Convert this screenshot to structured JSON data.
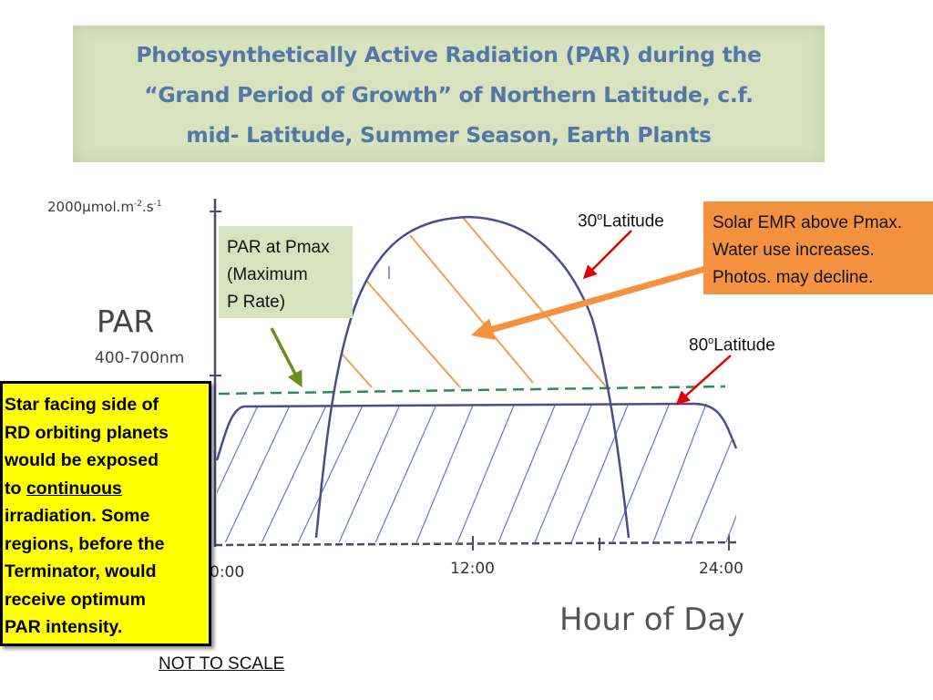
{
  "title": {
    "line1": "Photosynthetically Active Radiation (PAR) during the",
    "line2": "“Grand Period of Growth” of Northern Latitude, c.f.",
    "line3": "mid- Latitude, Summer Season, Earth Plants"
  },
  "axes": {
    "y_unit_prefix": "2000µmol.m",
    "y_unit_exp1": "-2",
    "y_unit_mid": ".s",
    "y_unit_exp2": "-1",
    "y_label": "PAR",
    "y_sublabel": "400-700nm",
    "x_ticks": [
      "0:00",
      "12:00",
      "24:00"
    ],
    "x_label": "Hour of Day"
  },
  "callouts": {
    "pmax_line1": "PAR at Pmax",
    "pmax_line2": "(Maximum",
    "pmax_line3": "P Rate)",
    "emr_line1": "Solar EMR above Pmax.",
    "emr_line2": "Water use increases.",
    "emr_line3": "Photos. may decline.",
    "lat30_num": "30",
    "lat30_sup": "o",
    "lat30_word": "Latitude",
    "lat80_num": "80",
    "lat80_sup": "o",
    "lat80_word": "Latitude"
  },
  "star_note": {
    "line1": "Star facing side of",
    "line2": "RD orbiting planets",
    "line3": "would be exposed",
    "line4_prefix": "to ",
    "line4_underlined": "continuous",
    "line5": "irradiation. Some",
    "line6": "regions, before the",
    "line7": "Terminator, would",
    "line8": "receive optimum",
    "line9": "PAR intensity."
  },
  "footer": {
    "not_to_scale": "NOT TO SCALE"
  },
  "colors": {
    "banner_bg": "#d7e2bf",
    "title_text": "#5577a8",
    "curve": "#4a4d8c",
    "hatch_blue": "#5a7bd0",
    "hatch_orange": "#f0a050",
    "pmax_line": "#2e8b57",
    "green_arrow": "#6b8e23",
    "orange_arrow": "#f4923f",
    "red_arrow": "#e00000",
    "note_bg": "#ffff00"
  }
}
